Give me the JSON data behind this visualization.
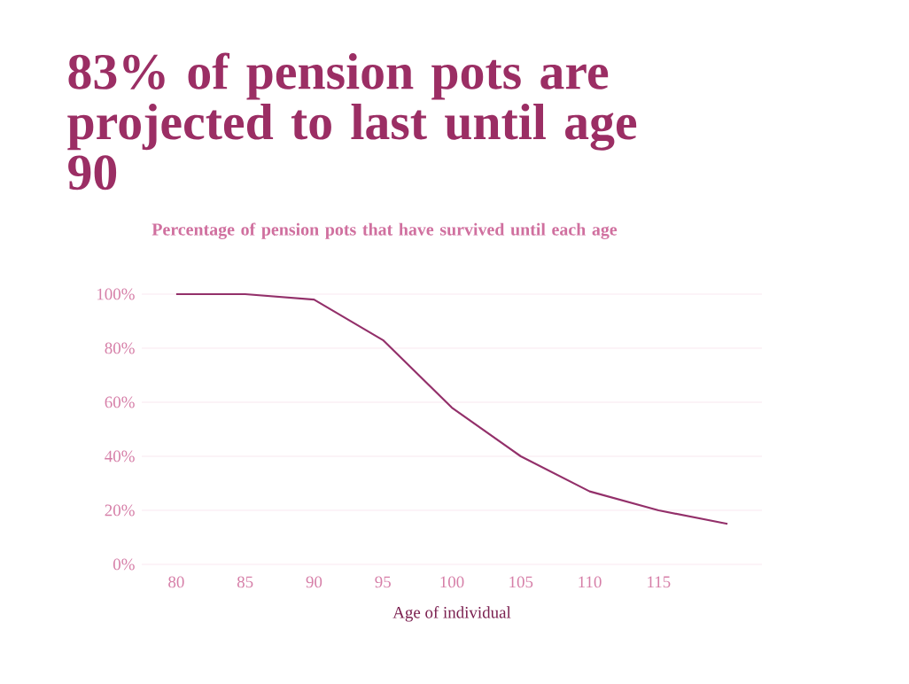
{
  "chart_data": {
    "type": "line",
    "title": "83% of pension pots are projected to last until age 90",
    "subtitle": "Percentage of pension pots that have survived until each age",
    "xlabel": "Age of individual",
    "categories": [
      "80",
      "85",
      "90",
      "95",
      "100",
      "105",
      "110",
      "115",
      null
    ],
    "series": [
      {
        "color": "#93306a",
        "values": [
          100,
          100,
          98,
          83,
          58,
          40,
          27,
          20,
          15
        ]
      }
    ],
    "ylim": [
      0,
      100
    ],
    "yticks": [
      {
        "value": 0,
        "label": "0%"
      },
      {
        "value": 20,
        "label": "20%"
      },
      {
        "value": 40,
        "label": "40%"
      },
      {
        "value": 60,
        "label": "60%"
      },
      {
        "value": 80,
        "label": "80%"
      },
      {
        "value": 100,
        "label": "100%"
      }
    ],
    "grid": "y",
    "marker": "none",
    "line_style": "solid"
  }
}
